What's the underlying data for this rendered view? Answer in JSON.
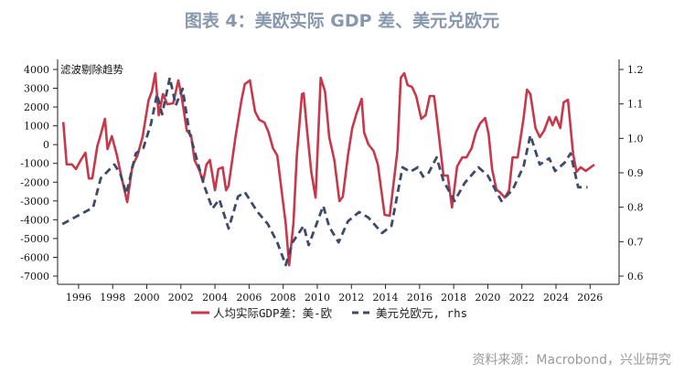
{
  "title": "图表 4：美欧实际 GDP 差、美元兑欧元",
  "source": "资料来源：Macrobond，兴业研究",
  "chart_data": {
    "type": "line",
    "title": "图表 4：美欧实际 GDP 差、美元兑欧元",
    "annotation": "滤波剔除趋势",
    "xlim": [
      1994.77,
      2027.7
    ],
    "ylim_left": [
      -7000,
      4000
    ],
    "ylim_right": [
      0.6,
      1.2
    ],
    "x_ticks": [
      "1996",
      "1998",
      "2000",
      "2002",
      "2004",
      "2006",
      "2008",
      "2010",
      "2012",
      "2014",
      "2016",
      "2018",
      "2020",
      "2022",
      "2024",
      "2026"
    ],
    "y_left_ticks": [
      "4000",
      "3000",
      "2000",
      "1000",
      "0",
      "-1000",
      "-2000",
      "-3000",
      "-4000",
      "-5000",
      "-6000",
      "-7000"
    ],
    "y_right_ticks": [
      "1.2",
      "1.1",
      "1.0",
      "0.9",
      "0.8",
      "0.7",
      "0.6"
    ],
    "grid": false,
    "legend_position": "bottom",
    "colors": {
      "gdp": "#c8374a",
      "fx": "#3d4a6b"
    },
    "series": [
      {
        "name": "人均实际GDP差：美-欧",
        "axis": "left",
        "style": "solid",
        "x": [
          1995.1,
          1995.3,
          1995.6,
          1995.85,
          1996.1,
          1996.4,
          1996.6,
          1996.8,
          1997.1,
          1997.3,
          1997.55,
          1997.7,
          1997.95,
          1998.25,
          1998.5,
          1998.85,
          1999.15,
          1999.45,
          1999.75,
          2000.1,
          2000.3,
          2000.5,
          2000.7,
          2000.95,
          2001.2,
          2001.55,
          2001.85,
          2002.05,
          2002.35,
          2002.6,
          2002.8,
          2003.1,
          2003.3,
          2003.5,
          2003.7,
          2004.0,
          2004.2,
          2004.45,
          2004.65,
          2004.8,
          2005.2,
          2005.55,
          2005.75,
          2006.05,
          2006.35,
          2006.6,
          2006.9,
          2007.15,
          2007.4,
          2007.65,
          2008.15,
          2008.35,
          2008.6,
          2008.8,
          2009.1,
          2009.2,
          2009.4,
          2009.65,
          2009.9,
          2010.2,
          2010.45,
          2010.7,
          2011.0,
          2011.3,
          2011.5,
          2011.8,
          2012.05,
          2012.3,
          2012.6,
          2012.75,
          2013.0,
          2013.3,
          2013.55,
          2013.95,
          2014.25,
          2014.7,
          2014.9,
          2015.1,
          2015.3,
          2015.55,
          2015.8,
          2016.1,
          2016.35,
          2016.6,
          2016.85,
          2017.05,
          2017.4,
          2017.65,
          2017.9,
          2018.2,
          2018.5,
          2018.75,
          2019.05,
          2019.3,
          2019.55,
          2019.85,
          2020.05,
          2020.25,
          2020.5,
          2020.7,
          2021.0,
          2021.25,
          2021.45,
          2021.75,
          2022.1,
          2022.3,
          2022.5,
          2022.8,
          2023.05,
          2023.3,
          2023.6,
          2023.8,
          2024.0,
          2024.25,
          2024.45,
          2024.7,
          2025.0,
          2025.2,
          2025.45,
          2025.75,
          2026.25
        ],
        "y": [
          1200,
          -1050,
          -1050,
          -1300,
          -870,
          -430,
          -1800,
          -1800,
          -90,
          540,
          1370,
          -240,
          450,
          -580,
          -1650,
          -3060,
          -1160,
          -580,
          400,
          2350,
          2830,
          3800,
          1560,
          2690,
          2150,
          2200,
          3420,
          2540,
          740,
          490,
          -820,
          -1400,
          -1990,
          -1060,
          -820,
          -2430,
          -1300,
          -1210,
          -2430,
          -2180,
          400,
          2350,
          3220,
          3420,
          1760,
          1320,
          1175,
          640,
          -190,
          -580,
          -4230,
          -6420,
          -4180,
          -580,
          2690,
          2730,
          740,
          -1450,
          -2820,
          3560,
          2830,
          400,
          -820,
          -3010,
          -2770,
          -580,
          880,
          1660,
          2440,
          640,
          10,
          -330,
          -1060,
          -3740,
          -3790,
          -330,
          3560,
          3800,
          3170,
          3070,
          2590,
          1370,
          1560,
          2590,
          2590,
          1130,
          -1650,
          -1650,
          -3350,
          -1160,
          -680,
          -680,
          -190,
          640,
          1130,
          1420,
          540,
          -1300,
          -2380,
          -2530,
          -2820,
          -2430,
          -680,
          -680,
          1420,
          2930,
          2690,
          880,
          400,
          740,
          1470,
          1030,
          1470,
          880,
          2250,
          2390,
          -480,
          -1450,
          -1210,
          -1400,
          -1060
        ]
      },
      {
        "name": "美元兑欧元, rhs",
        "axis": "right",
        "style": "dashed",
        "x": [
          1995.05,
          1996.85,
          1997.3,
          1998.1,
          1998.45,
          1998.8,
          1999.35,
          1999.8,
          2000.25,
          2000.6,
          2000.9,
          2001.35,
          2001.7,
          2002.1,
          2002.5,
          2003.35,
          2003.85,
          2004.25,
          2004.8,
          2005.35,
          2005.75,
          2006.5,
          2007.1,
          2007.65,
          2008.15,
          2008.55,
          2009.2,
          2009.5,
          2010.35,
          2010.7,
          2011.25,
          2011.8,
          2012.45,
          2013.0,
          2013.8,
          2014.35,
          2015.0,
          2015.45,
          2015.9,
          2016.2,
          2016.5,
          2017.0,
          2017.4,
          2018.05,
          2018.65,
          2019.45,
          2020.0,
          2020.8,
          2021.45,
          2022.1,
          2022.5,
          2023.05,
          2023.6,
          2023.95,
          2024.5,
          2024.85,
          2025.3,
          2025.85
        ],
        "y": [
          0.751,
          0.799,
          0.884,
          0.924,
          0.897,
          0.839,
          0.956,
          0.972,
          1.043,
          1.128,
          1.07,
          1.176,
          1.096,
          1.144,
          1.017,
          0.865,
          0.796,
          0.823,
          0.738,
          0.831,
          0.844,
          0.786,
          0.751,
          0.698,
          0.632,
          0.698,
          0.746,
          0.69,
          0.804,
          0.743,
          0.698,
          0.759,
          0.786,
          0.77,
          0.725,
          0.746,
          0.916,
          0.903,
          0.916,
          0.889,
          0.897,
          0.945,
          0.876,
          0.818,
          0.871,
          0.916,
          0.892,
          0.818,
          0.85,
          0.919,
          1.009,
          0.924,
          0.942,
          0.905,
          0.929,
          0.956,
          0.858,
          0.858
        ]
      }
    ]
  }
}
